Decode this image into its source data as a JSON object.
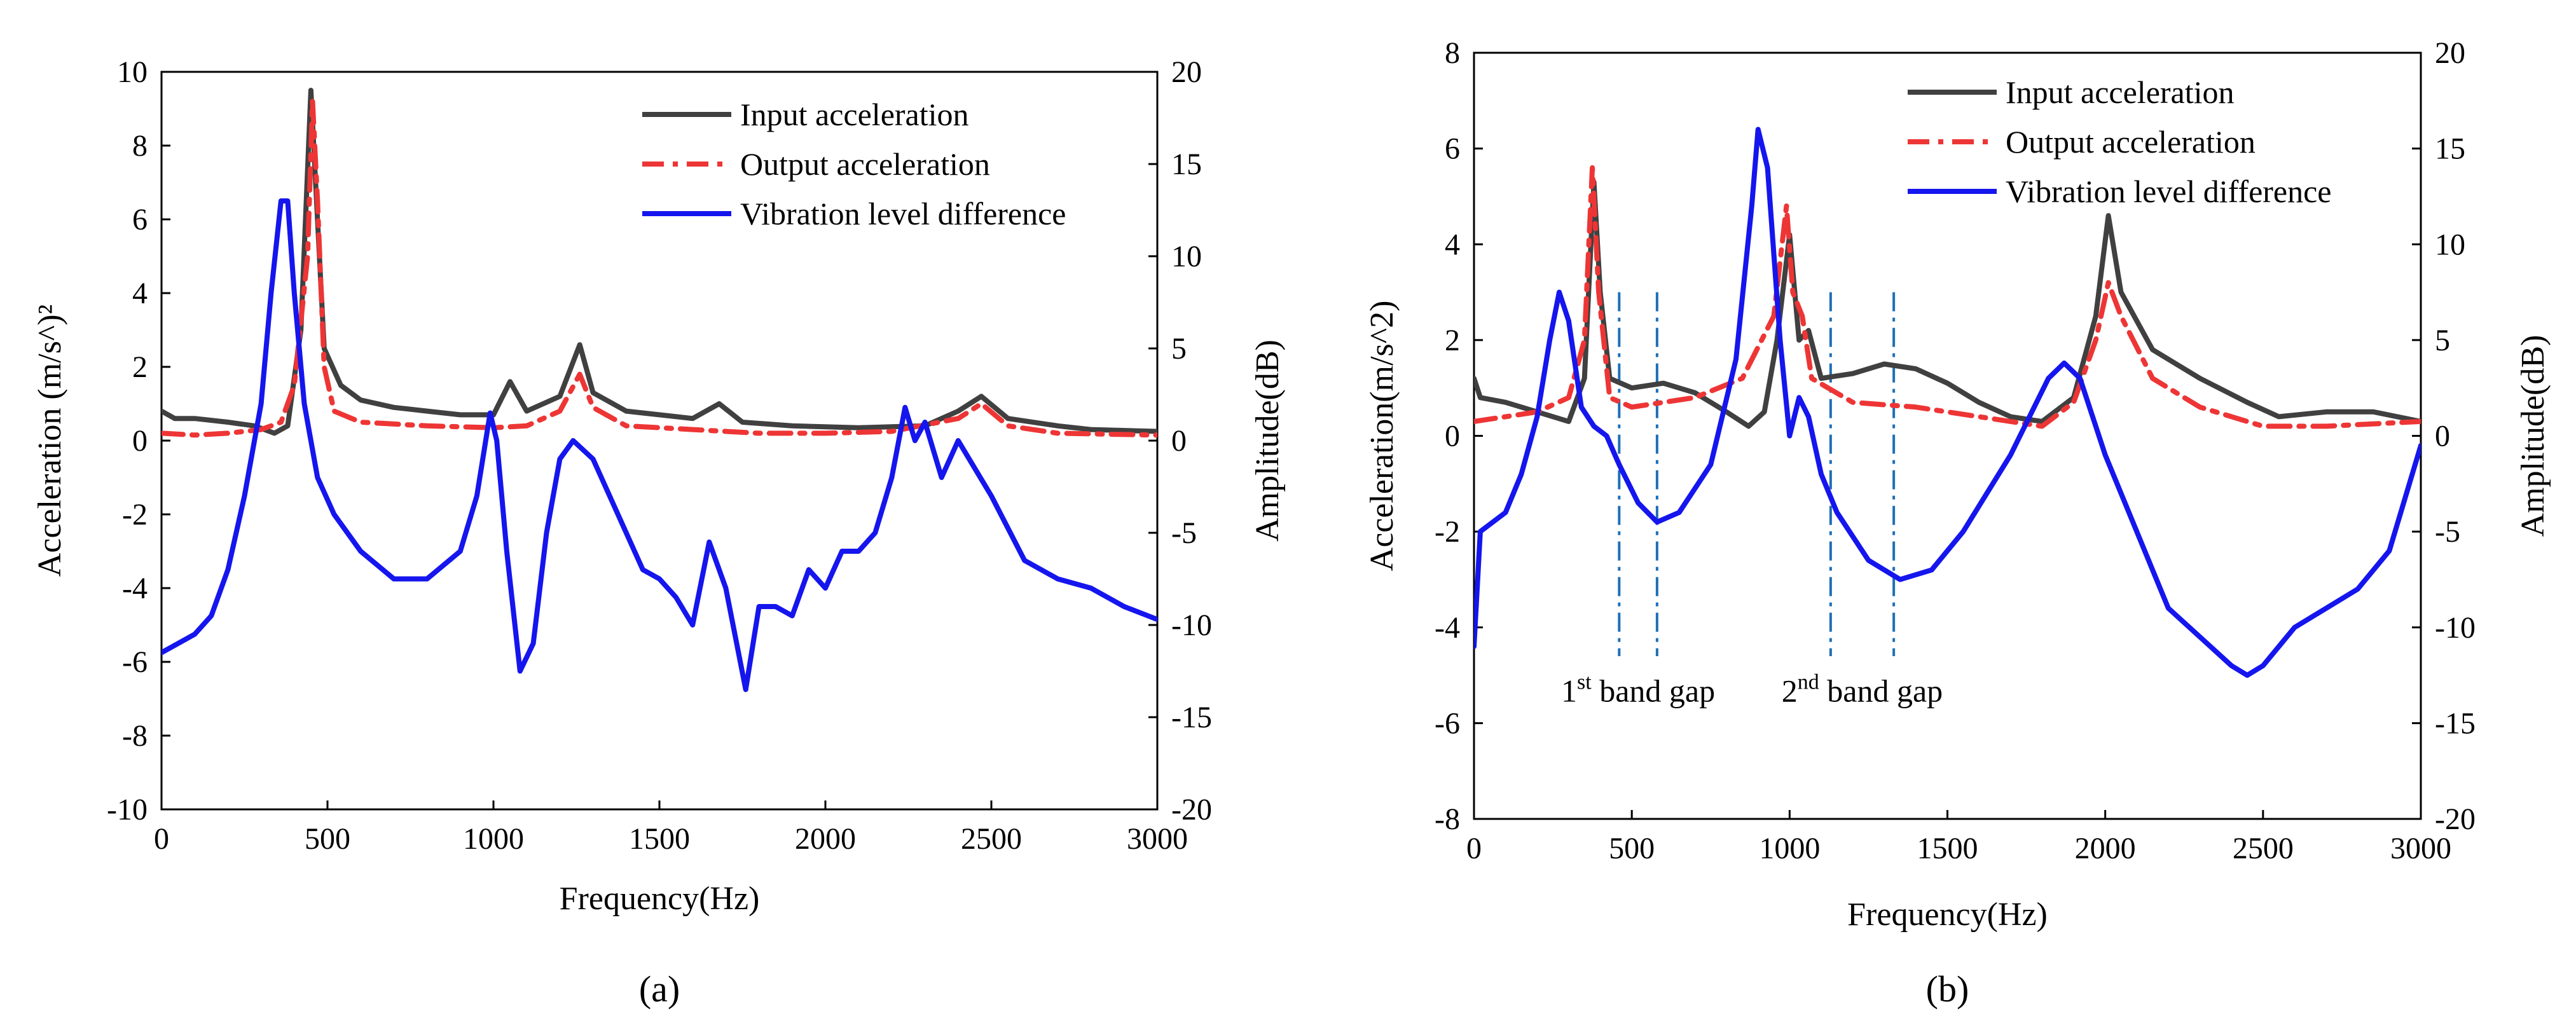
{
  "chart_data": [
    {
      "type": "line",
      "panel_label": "(a)",
      "xlabel": "Frequency(Hz)",
      "ylabel_left": "Acceleration (m/s^)²",
      "ylabel_right": "Amplitude(dB)",
      "xlim": [
        0,
        3000
      ],
      "ylim_left": [
        -10,
        10
      ],
      "ylim_right": [
        -20,
        20
      ],
      "x_ticks": [
        "0",
        "500",
        "1000",
        "1500",
        "2000",
        "2500",
        "3000"
      ],
      "y_left_ticks": [
        "-10",
        "-8",
        "-6",
        "-4",
        "-2",
        "0",
        "2",
        "4",
        "6",
        "8",
        "10"
      ],
      "y_right_ticks": [
        "-20",
        "-15",
        "-10",
        "-5",
        "0",
        "5",
        "10",
        "15",
        "20"
      ],
      "legend_position": "top-right",
      "series": [
        {
          "name": "Input acceleration",
          "axis": "left",
          "color": "#404040",
          "style": "solid",
          "points": [
            [
              0,
              0.8
            ],
            [
              40,
              0.6
            ],
            [
              100,
              0.6
            ],
            [
              200,
              0.5
            ],
            [
              280,
              0.4
            ],
            [
              340,
              0.2
            ],
            [
              380,
              0.4
            ],
            [
              420,
              3
            ],
            [
              450,
              9.5
            ],
            [
              470,
              6
            ],
            [
              490,
              2.5
            ],
            [
              540,
              1.5
            ],
            [
              600,
              1.1
            ],
            [
              700,
              0.9
            ],
            [
              800,
              0.8
            ],
            [
              900,
              0.7
            ],
            [
              1000,
              0.7
            ],
            [
              1050,
              1.6
            ],
            [
              1100,
              0.8
            ],
            [
              1200,
              1.2
            ],
            [
              1260,
              2.6
            ],
            [
              1300,
              1.3
            ],
            [
              1400,
              0.8
            ],
            [
              1500,
              0.7
            ],
            [
              1600,
              0.6
            ],
            [
              1680,
              1.0
            ],
            [
              1750,
              0.5
            ],
            [
              1900,
              0.4
            ],
            [
              2100,
              0.35
            ],
            [
              2300,
              0.4
            ],
            [
              2400,
              0.8
            ],
            [
              2470,
              1.2
            ],
            [
              2550,
              0.6
            ],
            [
              2700,
              0.4
            ],
            [
              2800,
              0.3
            ],
            [
              3000,
              0.25
            ]
          ]
        },
        {
          "name": "Output acceleration",
          "axis": "left",
          "color": "#ee3535",
          "style": "dashdot",
          "points": [
            [
              0,
              0.2
            ],
            [
              100,
              0.15
            ],
            [
              200,
              0.2
            ],
            [
              300,
              0.3
            ],
            [
              360,
              0.5
            ],
            [
              400,
              1.5
            ],
            [
              440,
              5
            ],
            [
              455,
              9.2
            ],
            [
              470,
              6.5
            ],
            [
              490,
              2
            ],
            [
              520,
              0.8
            ],
            [
              600,
              0.5
            ],
            [
              800,
              0.4
            ],
            [
              1000,
              0.35
            ],
            [
              1100,
              0.4
            ],
            [
              1200,
              0.8
            ],
            [
              1260,
              1.8
            ],
            [
              1300,
              0.9
            ],
            [
              1400,
              0.4
            ],
            [
              1600,
              0.3
            ],
            [
              1800,
              0.2
            ],
            [
              2000,
              0.2
            ],
            [
              2200,
              0.25
            ],
            [
              2400,
              0.6
            ],
            [
              2470,
              1.0
            ],
            [
              2550,
              0.4
            ],
            [
              2700,
              0.2
            ],
            [
              3000,
              0.15
            ]
          ]
        },
        {
          "name": "Vibration level difference",
          "axis": "right",
          "color": "#1515ee",
          "style": "solid",
          "points": [
            [
              0,
              -11.5
            ],
            [
              50,
              -11
            ],
            [
              100,
              -10.5
            ],
            [
              150,
              -9.5
            ],
            [
              200,
              -7
            ],
            [
              250,
              -3
            ],
            [
              300,
              2
            ],
            [
              330,
              8
            ],
            [
              360,
              13
            ],
            [
              380,
              13
            ],
            [
              400,
              8
            ],
            [
              430,
              2
            ],
            [
              470,
              -2
            ],
            [
              520,
              -4
            ],
            [
              600,
              -6
            ],
            [
              700,
              -7.5
            ],
            [
              800,
              -7.5
            ],
            [
              900,
              -6
            ],
            [
              950,
              -3
            ],
            [
              990,
              1.5
            ],
            [
              1010,
              0
            ],
            [
              1040,
              -6
            ],
            [
              1080,
              -12.5
            ],
            [
              1120,
              -11
            ],
            [
              1160,
              -5
            ],
            [
              1200,
              -1
            ],
            [
              1240,
              0
            ],
            [
              1300,
              -1
            ],
            [
              1400,
              -5
            ],
            [
              1450,
              -7
            ],
            [
              1500,
              -7.5
            ],
            [
              1550,
              -8.5
            ],
            [
              1600,
              -10
            ],
            [
              1650,
              -5.5
            ],
            [
              1700,
              -8
            ],
            [
              1760,
              -13.5
            ],
            [
              1800,
              -9
            ],
            [
              1850,
              -9
            ],
            [
              1900,
              -9.5
            ],
            [
              1950,
              -7
            ],
            [
              2000,
              -8
            ],
            [
              2050,
              -6
            ],
            [
              2100,
              -6
            ],
            [
              2150,
              -5
            ],
            [
              2200,
              -2
            ],
            [
              2240,
              1.8
            ],
            [
              2270,
              0
            ],
            [
              2300,
              1
            ],
            [
              2350,
              -2
            ],
            [
              2400,
              0
            ],
            [
              2500,
              -3
            ],
            [
              2600,
              -6.5
            ],
            [
              2700,
              -7.5
            ],
            [
              2800,
              -8
            ],
            [
              2900,
              -9
            ],
            [
              3000,
              -9.7
            ]
          ]
        }
      ],
      "annotations": []
    },
    {
      "type": "line",
      "panel_label": "(b)",
      "xlabel": "Frequency(Hz)",
      "ylabel_left": "Acceleration(m/s^2)",
      "ylabel_right": "Amplitude(dB)",
      "xlim": [
        0,
        3000
      ],
      "ylim_left": [
        -8,
        8
      ],
      "ylim_right": [
        -20,
        20
      ],
      "x_ticks": [
        "0",
        "500",
        "1000",
        "1500",
        "2000",
        "2500",
        "3000"
      ],
      "y_left_ticks": [
        "-8",
        "-6",
        "-4",
        "-2",
        "0",
        "2",
        "4",
        "6",
        "8"
      ],
      "y_right_ticks": [
        "-20",
        "-15",
        "-10",
        "-5",
        "0",
        "5",
        "10",
        "15",
        "20"
      ],
      "legend_position": "top-right",
      "series": [
        {
          "name": "Input acceleration",
          "axis": "left",
          "color": "#404040",
          "style": "solid",
          "points": [
            [
              0,
              1.2
            ],
            [
              20,
              0.8
            ],
            [
              100,
              0.7
            ],
            [
              200,
              0.5
            ],
            [
              300,
              0.3
            ],
            [
              350,
              1.2
            ],
            [
              380,
              5.3
            ],
            [
              400,
              3
            ],
            [
              430,
              1.2
            ],
            [
              500,
              1.0
            ],
            [
              600,
              1.1
            ],
            [
              700,
              0.9
            ],
            [
              800,
              0.5
            ],
            [
              870,
              0.2
            ],
            [
              920,
              0.5
            ],
            [
              960,
              2
            ],
            [
              1000,
              4.2
            ],
            [
              1030,
              2
            ],
            [
              1060,
              2.2
            ],
            [
              1100,
              1.2
            ],
            [
              1200,
              1.3
            ],
            [
              1300,
              1.5
            ],
            [
              1400,
              1.4
            ],
            [
              1500,
              1.1
            ],
            [
              1600,
              0.7
            ],
            [
              1700,
              0.4
            ],
            [
              1800,
              0.3
            ],
            [
              1900,
              0.8
            ],
            [
              1970,
              2.5
            ],
            [
              2010,
              4.6
            ],
            [
              2050,
              3
            ],
            [
              2150,
              1.8
            ],
            [
              2300,
              1.2
            ],
            [
              2450,
              0.7
            ],
            [
              2550,
              0.4
            ],
            [
              2700,
              0.5
            ],
            [
              2850,
              0.5
            ],
            [
              3000,
              0.3
            ]
          ]
        },
        {
          "name": "Output acceleration",
          "axis": "left",
          "color": "#ee3535",
          "style": "dashdot",
          "points": [
            [
              0,
              0.3
            ],
            [
              100,
              0.4
            ],
            [
              200,
              0.5
            ],
            [
              300,
              0.8
            ],
            [
              350,
              2
            ],
            [
              375,
              5.6
            ],
            [
              395,
              3
            ],
            [
              430,
              0.8
            ],
            [
              500,
              0.6
            ],
            [
              700,
              0.8
            ],
            [
              850,
              1.2
            ],
            [
              950,
              2.5
            ],
            [
              990,
              4.8
            ],
            [
              1010,
              3
            ],
            [
              1040,
              2.5
            ],
            [
              1070,
              1.2
            ],
            [
              1200,
              0.7
            ],
            [
              1400,
              0.6
            ],
            [
              1600,
              0.4
            ],
            [
              1800,
              0.2
            ],
            [
              1900,
              0.7
            ],
            [
              1970,
              2
            ],
            [
              2010,
              3.2
            ],
            [
              2050,
              2.5
            ],
            [
              2150,
              1.2
            ],
            [
              2300,
              0.6
            ],
            [
              2500,
              0.2
            ],
            [
              2700,
              0.2
            ],
            [
              3000,
              0.3
            ]
          ]
        },
        {
          "name": "Vibration level difference",
          "axis": "right",
          "color": "#1515ee",
          "style": "solid",
          "points": [
            [
              0,
              -11
            ],
            [
              20,
              -5
            ],
            [
              100,
              -4
            ],
            [
              150,
              -2
            ],
            [
              200,
              1
            ],
            [
              240,
              5
            ],
            [
              270,
              7.5
            ],
            [
              300,
              6
            ],
            [
              340,
              1.5
            ],
            [
              380,
              0.5
            ],
            [
              420,
              0
            ],
            [
              460,
              -1.5
            ],
            [
              520,
              -3.5
            ],
            [
              580,
              -4.5
            ],
            [
              650,
              -4
            ],
            [
              750,
              -1.5
            ],
            [
              830,
              4
            ],
            [
              880,
              12
            ],
            [
              900,
              16
            ],
            [
              930,
              14
            ],
            [
              970,
              5
            ],
            [
              1000,
              0
            ],
            [
              1030,
              2
            ],
            [
              1060,
              1
            ],
            [
              1100,
              -2
            ],
            [
              1150,
              -4
            ],
            [
              1250,
              -6.5
            ],
            [
              1350,
              -7.5
            ],
            [
              1450,
              -7
            ],
            [
              1550,
              -5
            ],
            [
              1700,
              -1
            ],
            [
              1820,
              3
            ],
            [
              1870,
              3.8
            ],
            [
              1920,
              3
            ],
            [
              2000,
              -1
            ],
            [
              2100,
              -5
            ],
            [
              2200,
              -9
            ],
            [
              2300,
              -10.5
            ],
            [
              2400,
              -12
            ],
            [
              2450,
              -12.5
            ],
            [
              2500,
              -12
            ],
            [
              2600,
              -10
            ],
            [
              2800,
              -8
            ],
            [
              2900,
              -6
            ],
            [
              3000,
              -0.5
            ]
          ]
        }
      ],
      "annotations": [
        {
          "text": "1",
          "superscript": "st",
          "rest": " band gap",
          "x_lines": [
            460,
            580
          ]
        },
        {
          "text": "2",
          "superscript": "nd",
          "rest": " band gap",
          "x_lines": [
            1130,
            1330
          ]
        }
      ]
    }
  ]
}
